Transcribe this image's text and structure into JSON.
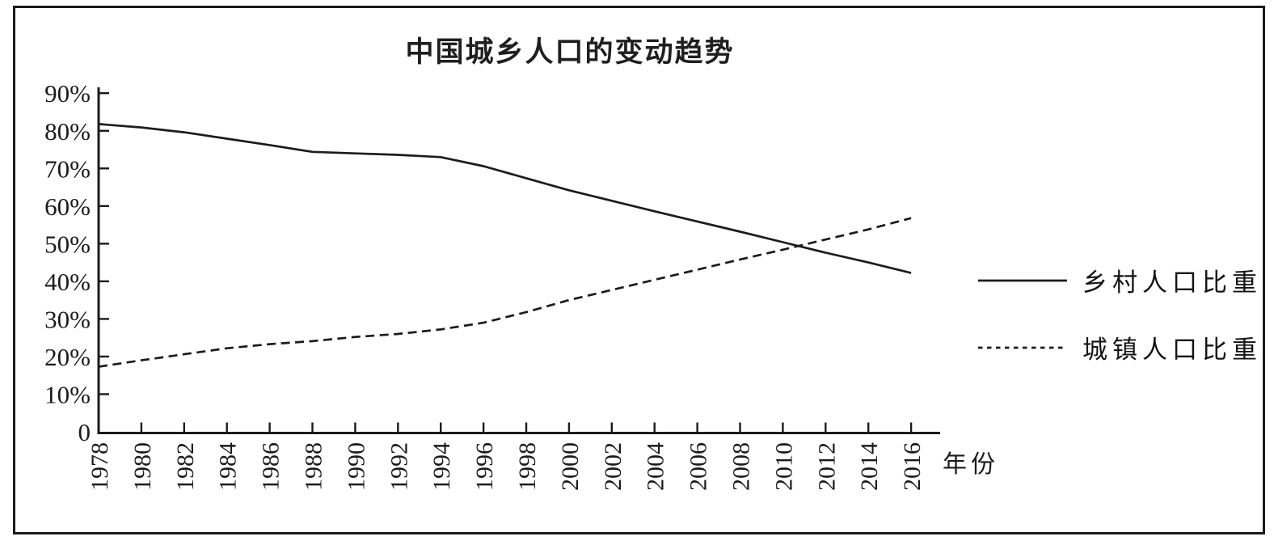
{
  "figure": {
    "background": "#ffffff",
    "frame_color": "#1b1b1b",
    "line_color": "#1c1c1c"
  },
  "chart_data": {
    "type": "line",
    "title": "中国城乡人口的变动趋势",
    "xlabel": "年份",
    "ylabel": "",
    "grid": false,
    "legend_position": "right",
    "ylim": [
      0,
      90
    ],
    "y_ticks": [
      0,
      10,
      20,
      30,
      40,
      50,
      60,
      70,
      80,
      90
    ],
    "y_tick_labels": [
      "0",
      "10%",
      "20%",
      "30%",
      "40%",
      "50%",
      "60%",
      "70%",
      "80%",
      "90%"
    ],
    "x": [
      1978,
      1980,
      1982,
      1984,
      1986,
      1988,
      1990,
      1992,
      1994,
      1996,
      1998,
      2000,
      2002,
      2004,
      2006,
      2008,
      2010,
      2012,
      2014,
      2016
    ],
    "x_tick_labels": [
      "1978",
      "1980",
      "1982",
      "1984",
      "1986",
      "1988",
      "1990",
      "1992",
      "1994",
      "1996",
      "1998",
      "2000",
      "2002",
      "2004",
      "2006",
      "2008",
      "2010",
      "2012",
      "2014",
      "2016"
    ],
    "series": [
      {
        "name": "乡村人口比重",
        "style": "solid",
        "values": [
          81.8,
          80.9,
          79.6,
          77.9,
          76.2,
          74.4,
          74.0,
          73.6,
          73.0,
          70.6,
          67.4,
          64.2,
          61.4,
          58.6,
          55.9,
          53.2,
          50.4,
          47.6,
          45.0,
          42.2
        ]
      },
      {
        "name": "城镇人口比重",
        "style": "dashed",
        "values": [
          17.3,
          19.0,
          20.6,
          22.2,
          23.3,
          24.1,
          25.2,
          26.0,
          27.2,
          29.0,
          31.8,
          35.0,
          37.7,
          40.4,
          43.1,
          45.8,
          48.4,
          51.1,
          53.8,
          56.8
        ]
      }
    ]
  }
}
